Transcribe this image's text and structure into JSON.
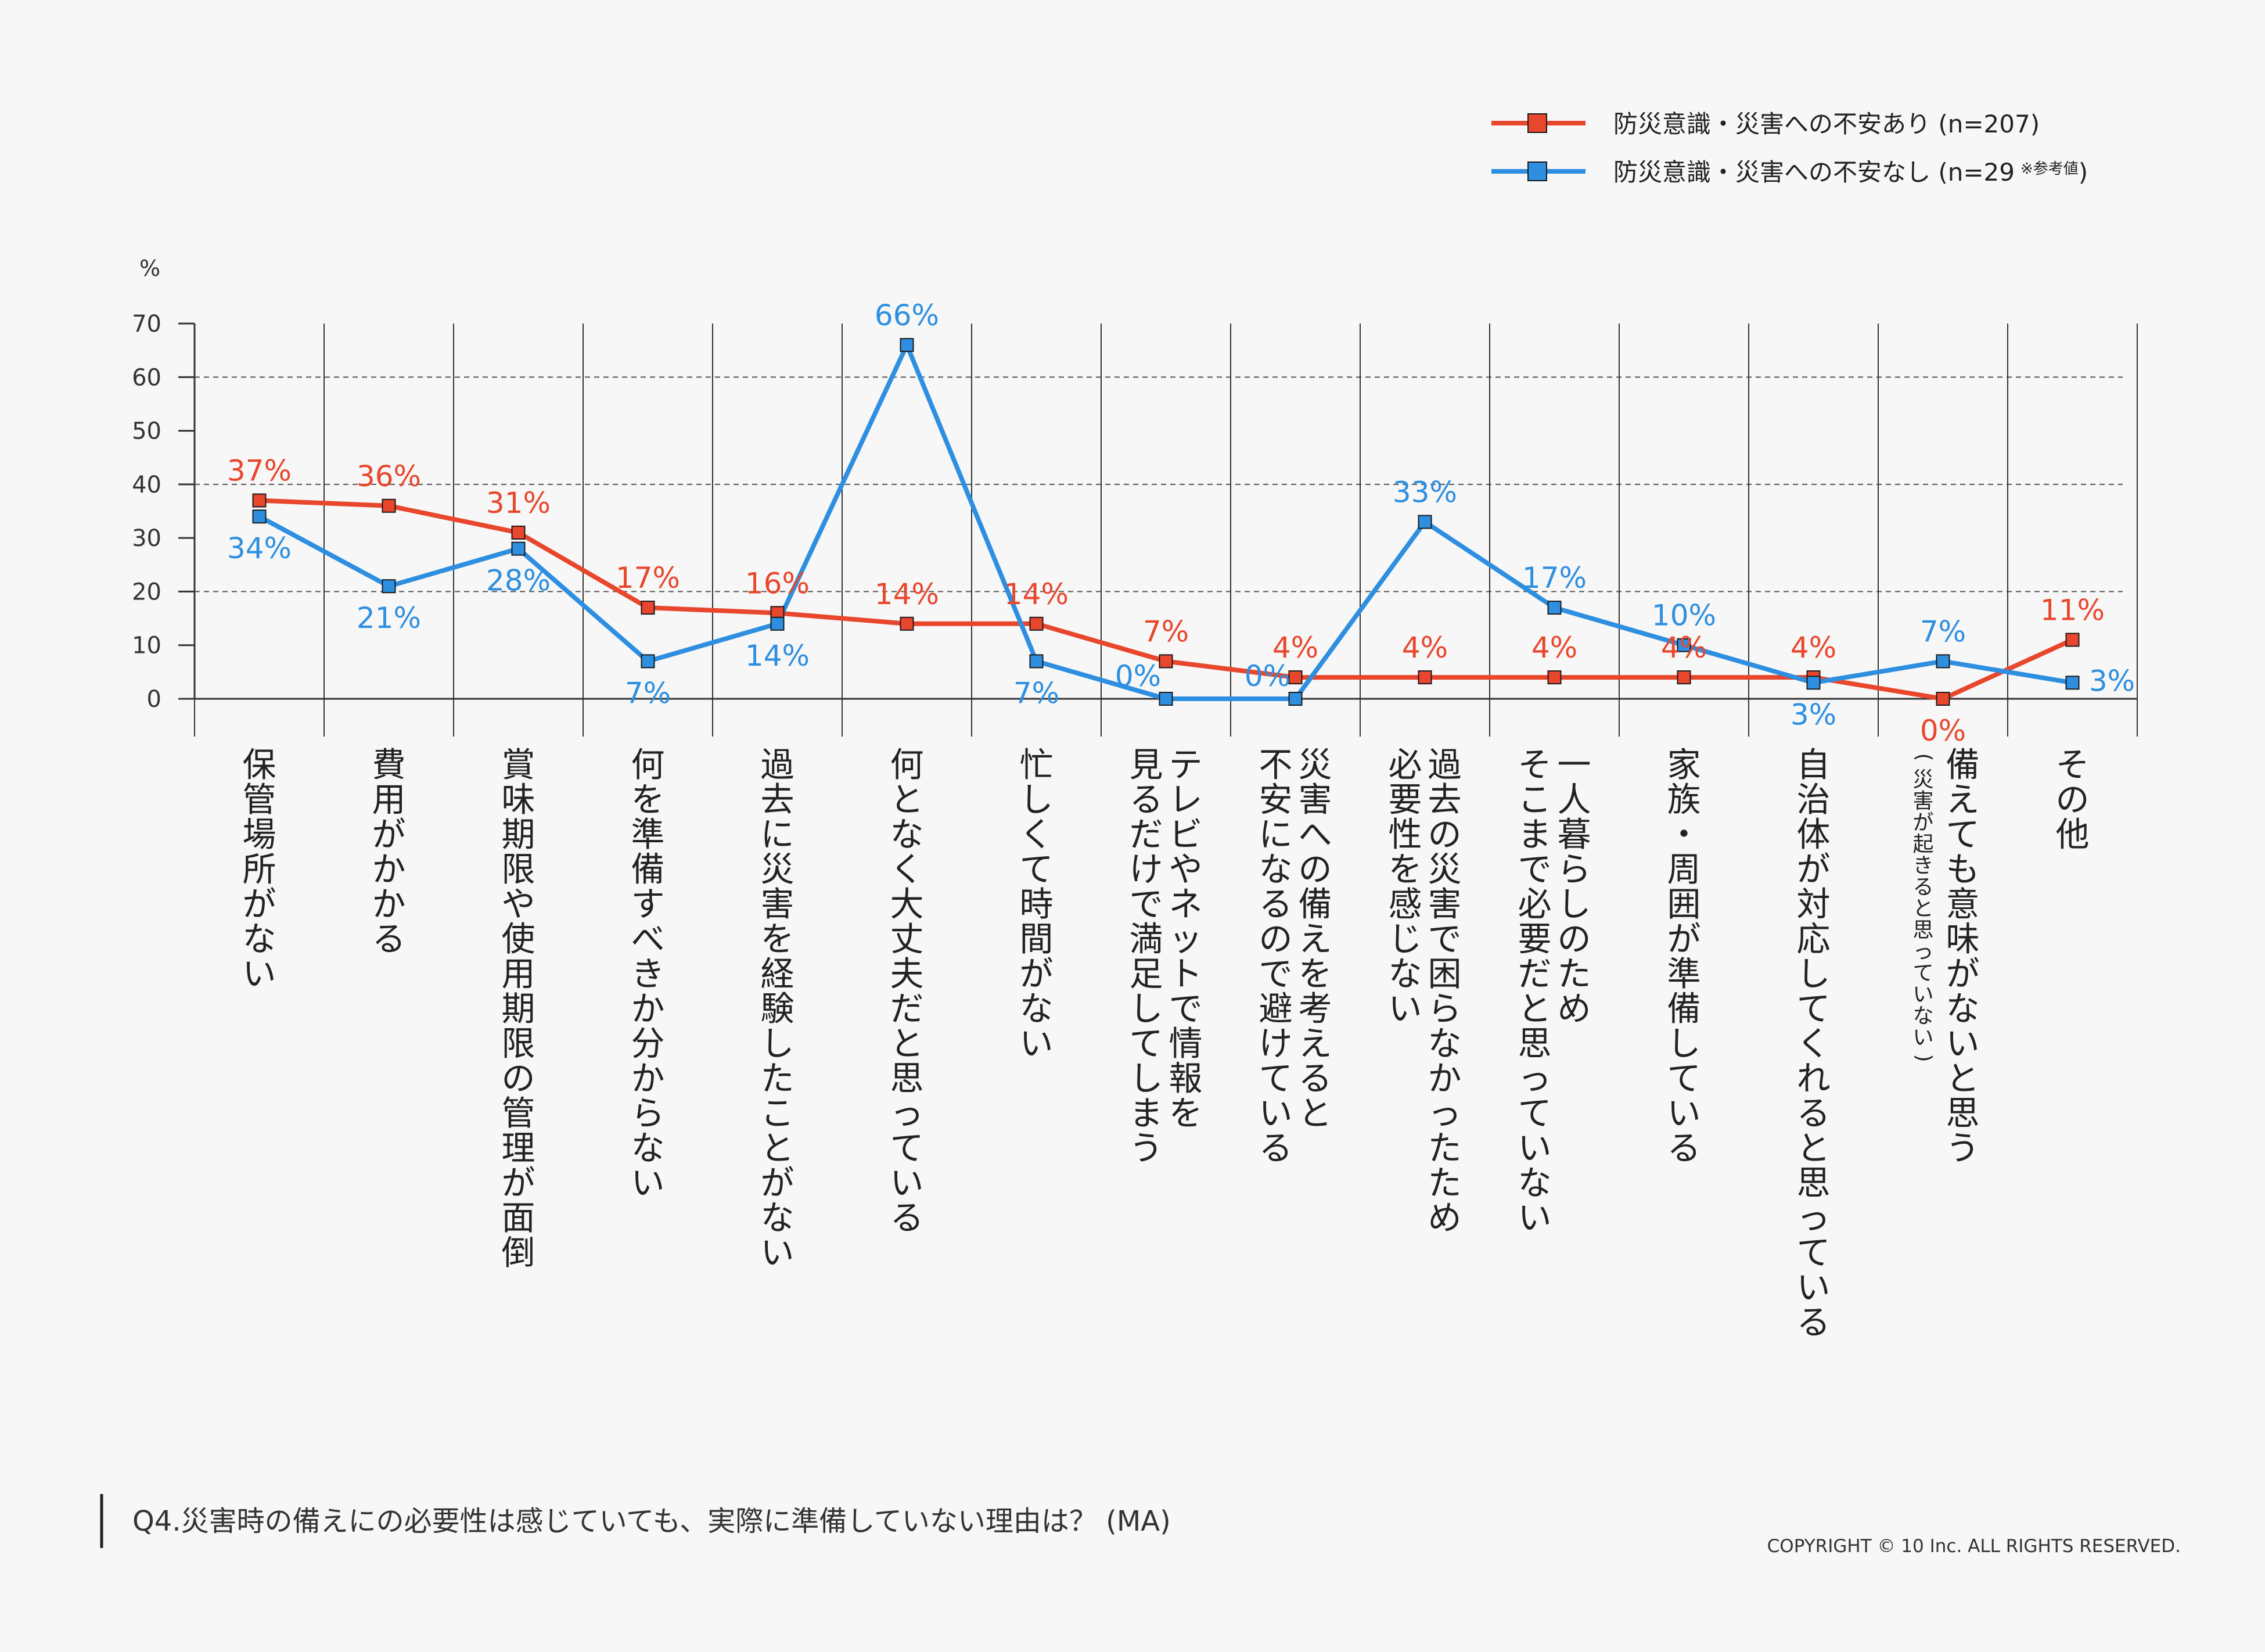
{
  "chart_data": {
    "type": "line",
    "unit_label": "%",
    "ylim": [
      0,
      70
    ],
    "y_ticks": [
      0,
      10,
      20,
      30,
      40,
      50,
      60,
      70
    ],
    "grid": "dashed horizontal lines at 20, 40, 60; vertical separators between categories",
    "legend_placement": "top-right",
    "categories": [
      "保管場所がない",
      "費用がかかる",
      "賞味期限や使用期限の管理が面倒",
      "何を準備すべきか分からない",
      "過去に災害を経験したことがない",
      "何となく大丈夫だと思っている",
      "忙しくて時間がない",
      "テレビやネットで情報を\n見るだけで満足してしまう",
      "災害への備えを考えると\n不安になるので避けている",
      "過去の災害で困らなかったため\n必要性を感じない",
      "一人暮らしのため\nそこまで必要だと思っていない",
      "家族・周囲が準備している",
      "自治体が対応してくれると思っている",
      "備えても意味がないと思う\n(災害が起きると思っていない)",
      "その他"
    ],
    "series": [
      {
        "name": "防災意識・災害への不安あり (n=207)",
        "name_note": "",
        "color": "#e8472d",
        "values": [
          37,
          36,
          31,
          17,
          16,
          14,
          14,
          7,
          4,
          4,
          4,
          4,
          4,
          0,
          11
        ],
        "labels": [
          "37%",
          "36%",
          "31%",
          "17%",
          "16%",
          "14%",
          "14%",
          "7%",
          "4%",
          "4%",
          "4%",
          "4%",
          "4%",
          "0%",
          "11%"
        ]
      },
      {
        "name": "防災意識・災害への不安なし (n=29",
        "name_note": "※参考値",
        "name_suffix": ")",
        "color": "#2e8fe0",
        "values": [
          34,
          21,
          28,
          7,
          14,
          66,
          7,
          0,
          0,
          33,
          17,
          10,
          3,
          7,
          3
        ],
        "labels": [
          "34%",
          "21%",
          "28%",
          "7%",
          "14%",
          "66%",
          "7%",
          "0%",
          "0%",
          "33%",
          "17%",
          "10%",
          "3%",
          "7%",
          "3%"
        ]
      }
    ]
  },
  "question_text": "Q4.災害時の備えにの必要性は感じていても、実際に準備していない理由は？ (MA)",
  "copyright": "COPYRIGHT © 10 Inc. ALL RIGHTS RESERVED."
}
